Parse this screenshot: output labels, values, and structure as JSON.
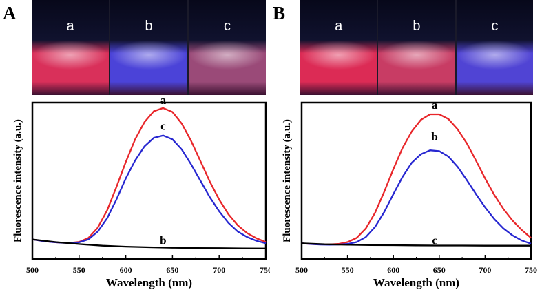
{
  "chart_data": [
    {
      "type": "line",
      "panel": "A",
      "photo": {
        "vials": [
          {
            "label": "a",
            "glow": "#d9305a"
          },
          {
            "label": "b",
            "glow": "#4b43d8"
          },
          {
            "label": "c",
            "glow": "#9a4a78"
          }
        ]
      },
      "xlabel": "Wavelength (nm)",
      "ylabel": "Fluorescence intensity (a.u.)",
      "xlim": [
        500,
        750
      ],
      "ylim": [
        0,
        100
      ],
      "xticks": [
        500,
        550,
        600,
        650,
        700,
        750
      ],
      "series": [
        {
          "name": "a",
          "color": "#e8262a",
          "x": [
            500,
            510,
            520,
            530,
            540,
            550,
            560,
            570,
            580,
            590,
            600,
            610,
            620,
            630,
            640,
            650,
            660,
            670,
            680,
            690,
            700,
            710,
            720,
            730,
            740,
            750
          ],
          "y": [
            12.5,
            11.6,
            10.9,
            10.4,
            10.3,
            10.9,
            13.5,
            20,
            31,
            46,
            62,
            76.5,
            87.5,
            94.5,
            96.5,
            94,
            86.5,
            75.5,
            62.5,
            49.5,
            38,
            28.5,
            21.5,
            16.5,
            13.2,
            10.8
          ]
        },
        {
          "name": "c",
          "color": "#2626d0",
          "x": [
            500,
            510,
            520,
            530,
            540,
            550,
            560,
            570,
            580,
            590,
            600,
            610,
            620,
            630,
            640,
            650,
            660,
            670,
            680,
            690,
            700,
            710,
            720,
            730,
            740,
            750
          ],
          "y": [
            12.5,
            11.6,
            10.9,
            10.4,
            10.2,
            10.6,
            12.5,
            17.5,
            26,
            38,
            51.5,
            63,
            72,
            77.5,
            79,
            76.5,
            70,
            60.5,
            50,
            39.5,
            30.5,
            23,
            17.5,
            14,
            11.6,
            10
          ]
        },
        {
          "name": "b",
          "color": "#000000",
          "x": [
            500,
            525,
            550,
            575,
            600,
            625,
            650,
            675,
            700,
            725,
            750
          ],
          "y": [
            12.5,
            10.8,
            9.5,
            8.5,
            7.9,
            7.5,
            7.2,
            7,
            6.9,
            6.8,
            6.7
          ]
        }
      ],
      "annotations": [
        "a",
        "c",
        "b"
      ]
    },
    {
      "type": "line",
      "panel": "B",
      "photo": {
        "vials": [
          {
            "label": "a",
            "glow": "#dc2b55"
          },
          {
            "label": "b",
            "glow": "#c83c64"
          },
          {
            "label": "c",
            "glow": "#5044d4"
          }
        ]
      },
      "xlabel": "Wavelength (nm)",
      "ylabel": "Fluorescence intensity (a.u.)",
      "xlim": [
        500,
        750
      ],
      "ylim": [
        0,
        100
      ],
      "xticks": [
        500,
        550,
        600,
        650,
        700,
        750
      ],
      "series": [
        {
          "name": "a",
          "color": "#e8262a",
          "x": [
            500,
            510,
            520,
            530,
            540,
            550,
            560,
            570,
            580,
            590,
            600,
            610,
            620,
            630,
            640,
            650,
            660,
            670,
            680,
            690,
            700,
            710,
            720,
            730,
            740,
            750
          ],
          "y": [
            10,
            9.5,
            9.3,
            9.3,
            9.6,
            10.8,
            13.5,
            19.5,
            29.5,
            43,
            57.5,
            71,
            81.5,
            89,
            92.5,
            92.5,
            89.5,
            83,
            74,
            63,
            51.5,
            41,
            32,
            24.5,
            18.5,
            13.5
          ]
        },
        {
          "name": "b",
          "color": "#2626d0",
          "x": [
            500,
            510,
            520,
            530,
            540,
            550,
            560,
            570,
            580,
            590,
            600,
            610,
            620,
            630,
            640,
            650,
            660,
            670,
            680,
            690,
            700,
            710,
            720,
            730,
            740,
            750
          ],
          "y": [
            10,
            9.5,
            9.2,
            9.1,
            9.2,
            9.6,
            10.8,
            14,
            20.5,
            30,
            41.5,
            52.5,
            61.5,
            67,
            69.5,
            69,
            65.5,
            59,
            50.5,
            41.5,
            33,
            25.5,
            19.5,
            15,
            11.8,
            9.8
          ]
        },
        {
          "name": "c",
          "color": "#000000",
          "x": [
            500,
            525,
            550,
            575,
            600,
            625,
            650,
            675,
            700,
            725,
            750
          ],
          "y": [
            10,
            9.4,
            9.1,
            8.9,
            8.8,
            8.7,
            8.6,
            8.6,
            8.5,
            8.5,
            8.5
          ]
        }
      ],
      "annotations": [
        "a",
        "b",
        "c"
      ]
    }
  ]
}
